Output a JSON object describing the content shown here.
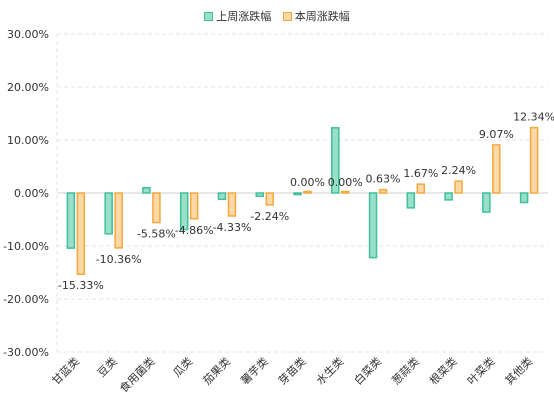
{
  "chart_data": {
    "type": "bar",
    "categories": [
      "甘蓝类",
      "豆类",
      "食用菌类",
      "瓜类",
      "茄果类",
      "薯芋类",
      "芽苗类",
      "水生类",
      "白菜类",
      "葱蒜类",
      "根菜类",
      "叶菜类",
      "其他类"
    ],
    "series": [
      {
        "name": "上周涨跌幅",
        "values": [
          -10.4,
          -7.7,
          1.0,
          -6.9,
          -1.2,
          -0.6,
          -0.3,
          12.3,
          -12.2,
          -2.8,
          -1.3,
          -3.6,
          -1.8
        ],
        "labels": [
          "",
          "",
          "",
          "",
          "",
          "",
          "",
          "",
          "",
          "",
          "",
          "",
          ""
        ],
        "fill": "#9adfca",
        "stroke": "#3fbf9a"
      },
      {
        "name": "本周涨跌幅",
        "values": [
          -15.33,
          -10.36,
          -5.58,
          -4.86,
          -4.33,
          -2.24,
          0.0,
          0.0,
          0.63,
          1.67,
          2.24,
          9.07,
          12.34
        ],
        "labels": [
          "-15.33%",
          "-10.36%",
          "-5.58%",
          "-4.86%",
          "-4.33%",
          "-2.24%",
          "0.00%",
          "0.00%",
          "0.63%",
          "1.67%",
          "2.24%",
          "9.07%",
          "12.34%"
        ],
        "fill": "#fdd7a6",
        "stroke": "#f5a83e"
      }
    ],
    "ylim": [
      -30,
      30
    ],
    "yticks": [
      30,
      20,
      10,
      0,
      -10,
      -20,
      -30
    ],
    "ytick_labels": [
      "30.00%",
      "20.00%",
      "10.00%",
      "0.00%",
      "-10.00%",
      "-20.00%",
      "-30.00%"
    ],
    "title": "",
    "xlabel": "",
    "ylabel": "",
    "grid": true,
    "legend_position": "top-center"
  }
}
